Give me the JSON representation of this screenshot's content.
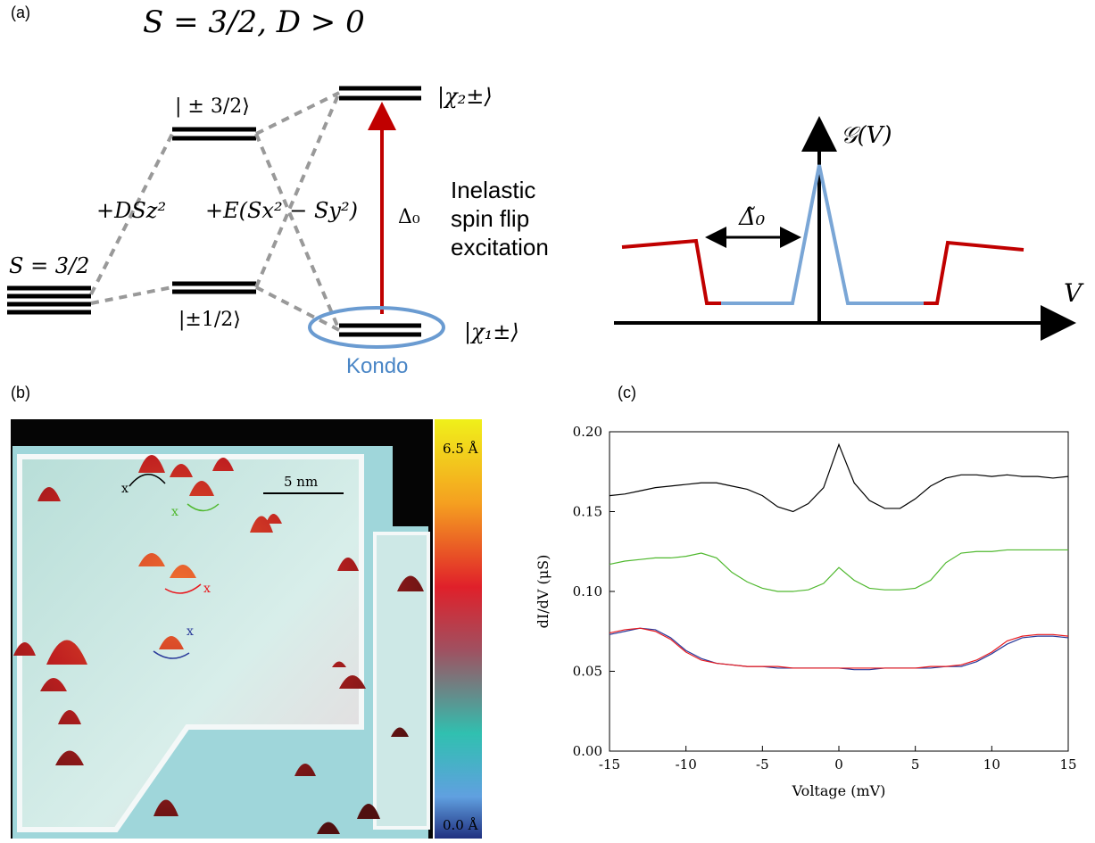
{
  "panel_a": {
    "label": "(a)",
    "title": "S = 3/2, D > 0",
    "spin_label": "S = 3/2",
    "state_3_2": "| ± 3/2⟩",
    "state_1_2": "|±1/2⟩",
    "term_d": "+DSz²",
    "term_e": "+E(Sx² − Sy²)",
    "chi2": "|χ₂±⟩",
    "chi1": "|χ₁±⟩",
    "delta": "Δ₀",
    "excitation": [
      "Inelastic",
      "spin flip",
      "excitation"
    ],
    "kondo": "Kondo",
    "g_axis": "𝒢(V)",
    "delta_tilde": "Δ̃₀",
    "v_axis": "V"
  },
  "panel_b": {
    "label": "(b)",
    "scale_bar": "5 nm",
    "colorbar_top": "6.5 Å",
    "colorbar_bottom": "0.0 Å",
    "markers": [
      "x",
      "x",
      "x",
      "x"
    ]
  },
  "panel_c": {
    "label": "(c)"
  },
  "chart_data": {
    "type": "line",
    "xlabel": "Voltage (mV)",
    "ylabel": "dI/dV (μS)",
    "x": [
      -15,
      -14,
      -13,
      -12,
      -11,
      -10,
      -9,
      -8,
      -7,
      -6,
      -5,
      -4,
      -3,
      -2,
      -1,
      0,
      1,
      2,
      3,
      4,
      5,
      6,
      7,
      8,
      9,
      10,
      11,
      12,
      13,
      14,
      15
    ],
    "series": [
      {
        "color": "#000000",
        "values": [
          0.16,
          0.161,
          0.163,
          0.165,
          0.166,
          0.167,
          0.168,
          0.168,
          0.166,
          0.164,
          0.16,
          0.153,
          0.15,
          0.155,
          0.165,
          0.192,
          0.168,
          0.157,
          0.152,
          0.152,
          0.158,
          0.166,
          0.171,
          0.173,
          0.173,
          0.172,
          0.173,
          0.172,
          0.172,
          0.171,
          0.172
        ]
      },
      {
        "color": "#4fb82e",
        "values": [
          0.117,
          0.119,
          0.12,
          0.121,
          0.121,
          0.122,
          0.124,
          0.121,
          0.112,
          0.106,
          0.102,
          0.1,
          0.1,
          0.101,
          0.105,
          0.115,
          0.107,
          0.102,
          0.101,
          0.101,
          0.102,
          0.107,
          0.118,
          0.124,
          0.125,
          0.125,
          0.126,
          0.126,
          0.126,
          0.126,
          0.126
        ]
      },
      {
        "color": "#2a3a9a",
        "values": [
          0.073,
          0.075,
          0.077,
          0.076,
          0.071,
          0.063,
          0.058,
          0.055,
          0.054,
          0.053,
          0.053,
          0.052,
          0.052,
          0.052,
          0.052,
          0.052,
          0.051,
          0.051,
          0.052,
          0.052,
          0.052,
          0.052,
          0.053,
          0.053,
          0.056,
          0.061,
          0.067,
          0.071,
          0.072,
          0.072,
          0.071
        ]
      },
      {
        "color": "#e8191e",
        "values": [
          0.074,
          0.076,
          0.077,
          0.075,
          0.07,
          0.062,
          0.057,
          0.055,
          0.054,
          0.053,
          0.053,
          0.053,
          0.052,
          0.052,
          0.052,
          0.052,
          0.052,
          0.052,
          0.052,
          0.052,
          0.052,
          0.053,
          0.053,
          0.054,
          0.057,
          0.062,
          0.069,
          0.072,
          0.073,
          0.073,
          0.072
        ]
      }
    ],
    "xlim": [
      -15,
      15
    ],
    "xticks": [
      -15,
      -10,
      -5,
      0,
      5,
      10,
      15
    ],
    "ylim": [
      0,
      0.2
    ],
    "yticks": [
      {
        "value": 0,
        "label": "0.00"
      },
      {
        "value": 0.05,
        "label": "0.05"
      },
      {
        "value": 0.1,
        "label": "0.10"
      },
      {
        "value": 0.15,
        "label": "0.15"
      },
      {
        "value": 0.2,
        "label": "0.20"
      }
    ]
  }
}
